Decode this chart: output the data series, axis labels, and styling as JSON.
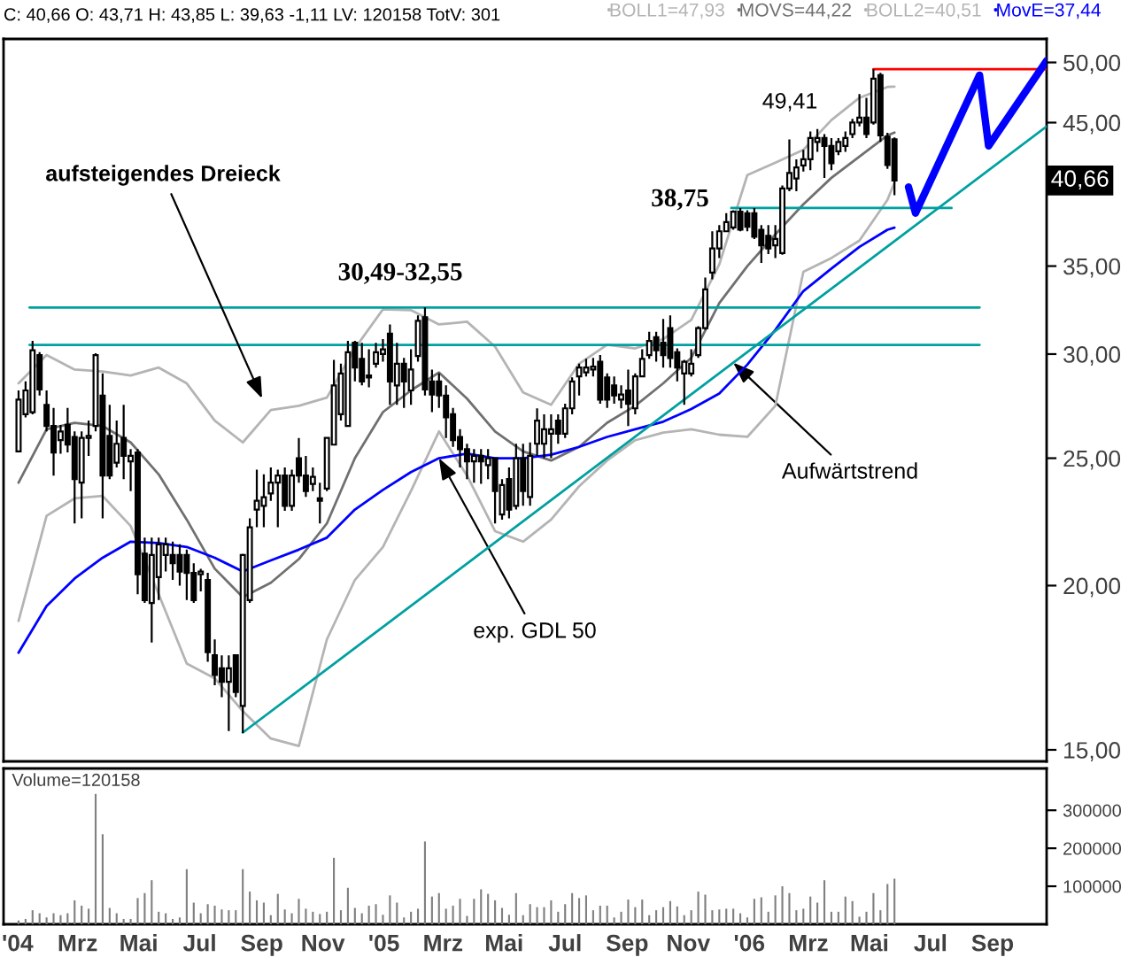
{
  "chart_data": [
    {
      "type": "candlestick",
      "title": "C: 40,66 O: 43,71 H: 43,85 L: 39,63 -1,11 LV: 120158 TotV: 301",
      "color": "#000000",
      "x": [
        "2004-01-02",
        "2004-01-09",
        "2004-01-16",
        "2004-01-23",
        "2004-01-30",
        "2004-02-06",
        "2004-02-13",
        "2004-02-20",
        "2004-02-27",
        "2004-03-05",
        "2004-03-12",
        "2004-03-19",
        "2004-03-26",
        "2004-04-02",
        "2004-04-09",
        "2004-04-16",
        "2004-04-23",
        "2004-04-30",
        "2004-05-07",
        "2004-05-14",
        "2004-05-21",
        "2004-05-28",
        "2004-06-04",
        "2004-06-11",
        "2004-06-18",
        "2004-06-25",
        "2004-07-02",
        "2004-07-09",
        "2004-07-16",
        "2004-07-23",
        "2004-07-30",
        "2004-08-06",
        "2004-08-13",
        "2004-08-20",
        "2004-08-27",
        "2004-09-03",
        "2004-09-10",
        "2004-09-17",
        "2004-09-24",
        "2004-10-01",
        "2004-10-08",
        "2004-10-15",
        "2004-10-22",
        "2004-10-29",
        "2004-11-05",
        "2004-11-12",
        "2004-11-19",
        "2004-11-26",
        "2004-12-03",
        "2004-12-10",
        "2004-12-17",
        "2004-12-24",
        "2004-12-31",
        "2005-01-07",
        "2005-01-14",
        "2005-01-21",
        "2005-01-28",
        "2005-02-04",
        "2005-02-11",
        "2005-02-18",
        "2005-02-25",
        "2005-03-04",
        "2005-03-11",
        "2005-03-18",
        "2005-03-25",
        "2005-04-01",
        "2005-04-08",
        "2005-04-15",
        "2005-04-22",
        "2005-04-29",
        "2005-05-06",
        "2005-05-13",
        "2005-05-20",
        "2005-05-27",
        "2005-06-03",
        "2005-06-10",
        "2005-06-17",
        "2005-06-24",
        "2005-07-01",
        "2005-07-08",
        "2005-07-15",
        "2005-07-22",
        "2005-07-29",
        "2005-08-05",
        "2005-08-12",
        "2005-08-19",
        "2005-08-26",
        "2005-09-02",
        "2005-09-09",
        "2005-09-16",
        "2005-09-23",
        "2005-09-30",
        "2005-10-07",
        "2005-10-14",
        "2005-10-21",
        "2005-10-28",
        "2005-11-04",
        "2005-11-11",
        "2005-11-18",
        "2005-11-25",
        "2005-12-02",
        "2005-12-09",
        "2005-12-16",
        "2005-12-23",
        "2005-12-30",
        "2006-01-06",
        "2006-01-13",
        "2006-01-20",
        "2006-01-27",
        "2006-02-03",
        "2006-02-10",
        "2006-02-17",
        "2006-02-24",
        "2006-03-03",
        "2006-03-10",
        "2006-03-17",
        "2006-03-24",
        "2006-03-31",
        "2006-04-07",
        "2006-04-14",
        "2006-04-21",
        "2006-04-28",
        "2006-05-05",
        "2006-05-12",
        "2006-05-19",
        "2006-05-26"
      ],
      "ohlc": [
        [
          25.3,
          28.15,
          25.25,
          27.7
        ],
        [
          27.0,
          28.6,
          26.85,
          28.15
        ],
        [
          27.1,
          30.7,
          27.0,
          30.2
        ],
        [
          29.95,
          30.1,
          27.9,
          28.2
        ],
        [
          27.45,
          28.15,
          26.2,
          26.45
        ],
        [
          26.45,
          27.3,
          24.25,
          25.25
        ],
        [
          25.8,
          26.5,
          25.2,
          26.2
        ],
        [
          26.5,
          27.3,
          25.25,
          25.6
        ],
        [
          25.95,
          26.2,
          22.3,
          24.1
        ],
        [
          23.95,
          26.2,
          22.5,
          25.9
        ],
        [
          25.9,
          26.7,
          25.1,
          26.0
        ],
        [
          26.45,
          30.05,
          26.2,
          29.95
        ],
        [
          27.9,
          29.0,
          22.5,
          24.25
        ],
        [
          26.0,
          27.45,
          24.1,
          24.25
        ],
        [
          24.8,
          26.7,
          24.6,
          25.64
        ],
        [
          25.9,
          27.45,
          24.1,
          25.1
        ],
        [
          24.86,
          25.4,
          23.6,
          25.1
        ],
        [
          25.25,
          25.4,
          19.7,
          20.4
        ],
        [
          21.15,
          21.75,
          19.4,
          19.5
        ],
        [
          19.4,
          21.75,
          18.1,
          21.1
        ],
        [
          20.3,
          21.75,
          19.5,
          21.5
        ],
        [
          21.1,
          21.75,
          20.5,
          21.5
        ],
        [
          21.1,
          21.6,
          20.2,
          20.8
        ],
        [
          21.1,
          21.5,
          20.0,
          20.5
        ],
        [
          21.1,
          21.3,
          19.5,
          20.45
        ],
        [
          20.45,
          20.8,
          19.4,
          19.5
        ],
        [
          20.4,
          20.6,
          19.8,
          20.5
        ],
        [
          20.2,
          20.45,
          17.5,
          17.8
        ],
        [
          17.7,
          18.2,
          16.8,
          17.1
        ],
        [
          17.3,
          17.7,
          16.45,
          16.9
        ],
        [
          16.9,
          17.7,
          15.5,
          17.3
        ],
        [
          17.7,
          17.7,
          16.45,
          16.6
        ],
        [
          16.2,
          21.15,
          15.45,
          21.1
        ],
        [
          19.5,
          22.5,
          19.4,
          22.15
        ],
        [
          22.85,
          24.5,
          22.15,
          23.2
        ],
        [
          23.0,
          24.3,
          22.15,
          23.35
        ],
        [
          23.5,
          24.6,
          23.2,
          23.95
        ],
        [
          23.95,
          24.5,
          22.15,
          24.25
        ],
        [
          24.25,
          24.6,
          22.8,
          23.0
        ],
        [
          23.0,
          24.5,
          22.8,
          24.25
        ],
        [
          25.0,
          25.9,
          23.95,
          24.25
        ],
        [
          24.25,
          25.1,
          23.36,
          23.6
        ],
        [
          23.9,
          24.6,
          23.6,
          24.2
        ],
        [
          23.3,
          23.95,
          22.3,
          23.2
        ],
        [
          23.7,
          25.9,
          23.6,
          25.9
        ],
        [
          25.6,
          29.7,
          25.6,
          28.4
        ],
        [
          27.0,
          29.5,
          26.7,
          29.0
        ],
        [
          26.45,
          30.7,
          26.45,
          30.1
        ],
        [
          30.6,
          30.7,
          28.6,
          29.3
        ],
        [
          29.75,
          30.6,
          28.4,
          28.6
        ],
        [
          28.8,
          30.25,
          28.3,
          28.9
        ],
        [
          29.5,
          30.6,
          29.3,
          30.1
        ],
        [
          30.0,
          30.8,
          29.6,
          30.25
        ],
        [
          31.1,
          31.6,
          27.45,
          28.6
        ],
        [
          28.4,
          30.6,
          27.45,
          29.5
        ],
        [
          29.5,
          29.8,
          27.3,
          28.6
        ],
        [
          28.15,
          30.25,
          27.45,
          29.2
        ],
        [
          29.9,
          32.1,
          29.6,
          31.8
        ],
        [
          32.0,
          32.55,
          27.9,
          28.2
        ],
        [
          28.6,
          29.2,
          27.1,
          27.95
        ],
        [
          28.6,
          29.0,
          27.3,
          27.9
        ],
        [
          27.9,
          28.4,
          25.9,
          26.85
        ],
        [
          27.0,
          27.3,
          25.5,
          25.8
        ],
        [
          25.95,
          26.3,
          24.6,
          25.4
        ],
        [
          25.4,
          25.64,
          24.1,
          24.86
        ],
        [
          24.86,
          25.4,
          23.95,
          25.1
        ],
        [
          25.1,
          25.4,
          23.9,
          24.86
        ],
        [
          24.7,
          25.4,
          24.1,
          25.0
        ],
        [
          25.0,
          25.0,
          22.3,
          23.6
        ],
        [
          22.65,
          24.1,
          22.45,
          23.85
        ],
        [
          24.1,
          24.6,
          22.5,
          22.85
        ],
        [
          23.0,
          25.64,
          22.85,
          25.0
        ],
        [
          25.0,
          25.64,
          23.0,
          23.6
        ],
        [
          23.36,
          25.7,
          23.0,
          25.1
        ],
        [
          25.64,
          27.28,
          25.1,
          26.7
        ],
        [
          25.64,
          27.0,
          25.0,
          26.3
        ],
        [
          26.1,
          27.0,
          25.0,
          26.3
        ],
        [
          26.7,
          27.0,
          25.64,
          26.1
        ],
        [
          26.1,
          27.5,
          25.9,
          27.28
        ],
        [
          27.28,
          28.8,
          27.0,
          28.6
        ],
        [
          28.85,
          29.5,
          27.9,
          29.3
        ],
        [
          29.05,
          29.75,
          28.85,
          29.3
        ],
        [
          29.2,
          29.8,
          28.85,
          29.35
        ],
        [
          29.6,
          29.95,
          27.5,
          27.7
        ],
        [
          28.8,
          29.0,
          27.3,
          27.7
        ],
        [
          28.4,
          28.85,
          27.5,
          27.9
        ],
        [
          27.7,
          28.4,
          27.28,
          27.95
        ],
        [
          28.15,
          29.2,
          26.45,
          27.5
        ],
        [
          27.28,
          29.0,
          27.0,
          28.85
        ],
        [
          28.85,
          30.25,
          28.8,
          29.75
        ],
        [
          29.95,
          31.2,
          29.75,
          30.7
        ],
        [
          30.9,
          31.2,
          29.6,
          30.2
        ],
        [
          30.6,
          31.9,
          29.3,
          29.95
        ],
        [
          31.4,
          32.1,
          29.3,
          29.8
        ],
        [
          30.1,
          30.3,
          28.6,
          29.3
        ],
        [
          29.0,
          29.7,
          27.45,
          29.6
        ],
        [
          29.0,
          30.25,
          28.85,
          29.5
        ],
        [
          29.95,
          31.5,
          29.8,
          31.4
        ],
        [
          31.4,
          34.3,
          31.3,
          33.6
        ],
        [
          34.6,
          37.2,
          34.2,
          36.1
        ],
        [
          36.1,
          37.6,
          35.5,
          37.2
        ],
        [
          37.2,
          38.4,
          37.2,
          37.8
        ],
        [
          37.45,
          38.6,
          37.3,
          38.5
        ],
        [
          38.5,
          38.75,
          37.2,
          37.3
        ],
        [
          38.4,
          38.6,
          37.2,
          37.5
        ],
        [
          38.4,
          38.75,
          36.7,
          36.85
        ],
        [
          37.3,
          37.6,
          35.2,
          36.3
        ],
        [
          36.9,
          37.6,
          35.75,
          36.1
        ],
        [
          36.3,
          37.6,
          35.5,
          36.7
        ],
        [
          35.8,
          40.3,
          35.7,
          40.1
        ],
        [
          40.1,
          43.7,
          39.9,
          41.2
        ],
        [
          40.8,
          42.2,
          39.9,
          41.6
        ],
        [
          41.75,
          42.9,
          41.3,
          42.2
        ],
        [
          42.2,
          44.3,
          41.4,
          43.8
        ],
        [
          43.5,
          44.5,
          42.75,
          43.8
        ],
        [
          43.8,
          44.1,
          40.85,
          43.2
        ],
        [
          43.2,
          43.8,
          41.4,
          41.9
        ],
        [
          42.8,
          43.8,
          42.5,
          43.5
        ],
        [
          43.2,
          44.3,
          42.75,
          43.8
        ],
        [
          44.1,
          45.3,
          43.8,
          45.0
        ],
        [
          45.0,
          47.3,
          44.7,
          45.4
        ],
        [
          45.4,
          47.0,
          43.8,
          44.1
        ],
        [
          45.0,
          49.41,
          44.85,
          48.6
        ],
        [
          48.9,
          49.1,
          43.5,
          44.0
        ],
        [
          43.9,
          44.2,
          41.5,
          41.77
        ],
        [
          43.71,
          43.85,
          39.63,
          40.66
        ]
      ],
      "series": [
        {
          "type": "line",
          "name": "BOLL1=47,93",
          "color": "#b4b4b4",
          "x": [
            "2004-01-02",
            "2004-01-30",
            "2004-02-27",
            "2004-03-26",
            "2004-04-23",
            "2004-05-21",
            "2004-06-18",
            "2004-07-16",
            "2004-08-13",
            "2004-09-10",
            "2004-10-08",
            "2004-11-05",
            "2004-12-03",
            "2004-12-31",
            "2005-01-28",
            "2005-02-25",
            "2005-03-25",
            "2005-04-22",
            "2005-05-20",
            "2005-06-17",
            "2005-07-15",
            "2005-08-12",
            "2005-09-09",
            "2005-10-07",
            "2005-11-04",
            "2005-12-02",
            "2005-12-30",
            "2006-01-27",
            "2006-02-24",
            "2006-03-24",
            "2006-04-21",
            "2006-05-19",
            "2006-05-26"
          ],
          "values": [
            28.5,
            29.95,
            29.2,
            29.1,
            28.9,
            29.3,
            28.5,
            26.7,
            25.7,
            27.2,
            27.4,
            27.8,
            30.3,
            32.45,
            32.4,
            31.6,
            31.75,
            30.4,
            28.05,
            27.45,
            29.5,
            30.5,
            30.3,
            30.8,
            31.85,
            35.1,
            41.05,
            41.95,
            42.9,
            45.2,
            47.0,
            47.9,
            47.93
          ]
        },
        {
          "type": "line",
          "name": "MOVS=44,22",
          "color": "#707070",
          "x": [
            "2004-01-02",
            "2004-01-30",
            "2004-02-27",
            "2004-03-26",
            "2004-04-23",
            "2004-05-21",
            "2004-06-18",
            "2004-07-16",
            "2004-08-13",
            "2004-09-10",
            "2004-10-08",
            "2004-11-05",
            "2004-12-03",
            "2004-12-31",
            "2005-01-28",
            "2005-02-25",
            "2005-03-25",
            "2005-04-22",
            "2005-05-20",
            "2005-06-17",
            "2005-07-15",
            "2005-08-12",
            "2005-09-09",
            "2005-10-07",
            "2005-11-04",
            "2005-12-02",
            "2005-12-30",
            "2006-01-27",
            "2006-02-24",
            "2006-03-24",
            "2006-04-21",
            "2006-05-19",
            "2006-05-26"
          ],
          "values": [
            23.95,
            26.3,
            26.6,
            26.45,
            25.7,
            24.3,
            22.45,
            20.6,
            19.6,
            20.1,
            20.95,
            22.3,
            25.0,
            27.1,
            28.15,
            29.05,
            27.75,
            26.2,
            25.3,
            24.9,
            25.5,
            26.6,
            27.4,
            28.5,
            29.8,
            32.8,
            35.0,
            37.0,
            39.0,
            40.85,
            42.4,
            44.0,
            44.22
          ]
        },
        {
          "type": "line",
          "name": "BOLL2=40,51",
          "color": "#b4b4b4",
          "x": [
            "2004-01-02",
            "2004-01-30",
            "2004-02-27",
            "2004-03-26",
            "2004-04-23",
            "2004-05-21",
            "2004-06-18",
            "2004-07-16",
            "2004-08-13",
            "2004-09-10",
            "2004-10-08",
            "2004-11-05",
            "2004-12-03",
            "2004-12-31",
            "2005-01-28",
            "2005-02-25",
            "2005-03-25",
            "2005-04-22",
            "2005-05-20",
            "2005-06-17",
            "2005-07-15",
            "2005-08-12",
            "2005-09-09",
            "2005-10-07",
            "2005-11-04",
            "2005-12-02",
            "2005-12-30",
            "2006-01-27",
            "2006-02-24",
            "2006-03-24",
            "2006-04-21",
            "2006-05-19",
            "2006-05-26"
          ],
          "values": [
            18.8,
            22.6,
            23.3,
            23.4,
            22.2,
            19.7,
            17.45,
            17.0,
            16.05,
            15.3,
            15.1,
            18.2,
            20.2,
            21.4,
            23.6,
            26.2,
            24.25,
            22.0,
            21.6,
            22.45,
            23.8,
            24.9,
            25.8,
            26.15,
            26.3,
            26.05,
            25.95,
            27.4,
            34.65,
            35.5,
            36.6,
            39.3,
            40.51
          ]
        },
        {
          "type": "line",
          "name": "MovE=37,44",
          "color": "#0000ff",
          "x": [
            "2004-01-02",
            "2004-01-30",
            "2004-02-27",
            "2004-03-26",
            "2004-04-23",
            "2004-05-21",
            "2004-06-18",
            "2004-07-16",
            "2004-08-13",
            "2004-09-10",
            "2004-10-08",
            "2004-11-05",
            "2004-12-03",
            "2004-12-31",
            "2005-01-28",
            "2005-02-25",
            "2005-03-25",
            "2005-04-22",
            "2005-05-20",
            "2005-06-17",
            "2005-07-15",
            "2005-08-12",
            "2005-09-09",
            "2005-10-07",
            "2005-11-04",
            "2005-12-02",
            "2005-12-30",
            "2006-01-27",
            "2006-02-24",
            "2006-03-24",
            "2006-04-21",
            "2006-05-19",
            "2006-05-26"
          ],
          "values": [
            17.78,
            19.3,
            20.25,
            21.0,
            21.6,
            21.55,
            21.4,
            21.0,
            20.5,
            20.9,
            21.3,
            21.75,
            22.85,
            23.65,
            24.4,
            25.0,
            25.2,
            25.0,
            25.0,
            25.15,
            25.5,
            25.95,
            26.3,
            26.65,
            27.25,
            28.0,
            29.45,
            31.3,
            33.5,
            34.85,
            36.2,
            37.3,
            37.44
          ]
        },
        {
          "type": "line",
          "color": "#00a0a0",
          "x": [
            "2004-01-13",
            "2006-08-19"
          ],
          "values": [
            32.55,
            32.55
          ]
        },
        {
          "type": "line",
          "color": "#00a0a0",
          "x": [
            "2004-01-13",
            "2006-08-19"
          ],
          "values": [
            30.49,
            30.49
          ]
        },
        {
          "type": "line",
          "color": "#00a0a0",
          "x": [
            "2004-08-13",
            "2006-10-25"
          ],
          "values": [
            15.46,
            44.7
          ]
        },
        {
          "type": "line",
          "color": "#00a0a0",
          "x": [
            "2005-12-14",
            "2006-07-22"
          ],
          "values": [
            38.75,
            38.75
          ]
        },
        {
          "type": "line",
          "color": "#ff0000",
          "x": [
            "2006-05-05",
            "2006-10-25"
          ],
          "values": [
            49.41,
            49.41
          ]
        },
        {
          "type": "line",
          "color": "#0000ff",
          "x": [
            "2006-06-09",
            "2006-06-16",
            "2006-08-19",
            "2006-08-28",
            "2006-10-25"
          ],
          "values": [
            40.2,
            38.4,
            48.9,
            43.2,
            50.15
          ]
        }
      ],
      "annotations": [
        {
          "text": "30,49-32,55",
          "x": "2005-01-28",
          "y": 32.55
        },
        "38,75",
        "49,41",
        "aufsteigendes Dreieck",
        {
          "text": "exp. GDL 50",
          "x": "2005-02-25",
          "y": 25.0
        },
        {
          "text": "Aufwärtstrend",
          "x": "2005-12-16",
          "y": 29.55
        },
        "40,66"
      ],
      "xlim": [
        "2003-12-18",
        "2006-10-25"
      ],
      "ylim": [
        14.7,
        52.1
      ],
      "log": true,
      "yticks": [
        {
          "value": 15,
          "label": "15,00"
        },
        {
          "value": 20,
          "label": "20,00"
        },
        {
          "value": 25,
          "label": "25,00"
        },
        {
          "value": 30,
          "label": "30,00"
        },
        {
          "value": 35,
          "label": "35,00"
        },
        {
          "value": 40,
          "label": null
        },
        {
          "value": 45,
          "label": "45,00"
        },
        {
          "value": 50,
          "label": "50,00"
        }
      ],
      "legend": "top",
      "tick_labels": "y"
    },
    {
      "type": "bar",
      "title": "Volume=120158",
      "color": "#808080",
      "x": [
        "2004-01-02",
        "2004-01-09",
        "2004-01-16",
        "2004-01-23",
        "2004-01-30",
        "2004-02-06",
        "2004-02-13",
        "2004-02-20",
        "2004-02-27",
        "2004-03-05",
        "2004-03-12",
        "2004-03-19",
        "2004-03-26",
        "2004-04-02",
        "2004-04-09",
        "2004-04-16",
        "2004-04-23",
        "2004-04-30",
        "2004-05-07",
        "2004-05-14",
        "2004-05-21",
        "2004-05-28",
        "2004-06-04",
        "2004-06-11",
        "2004-06-18",
        "2004-06-25",
        "2004-07-02",
        "2004-07-09",
        "2004-07-16",
        "2004-07-23",
        "2004-07-30",
        "2004-08-06",
        "2004-08-13",
        "2004-08-20",
        "2004-08-27",
        "2004-09-03",
        "2004-09-10",
        "2004-09-17",
        "2004-09-24",
        "2004-10-01",
        "2004-10-08",
        "2004-10-15",
        "2004-10-22",
        "2004-10-29",
        "2004-11-05",
        "2004-11-12",
        "2004-11-19",
        "2004-11-26",
        "2004-12-03",
        "2004-12-10",
        "2004-12-17",
        "2004-12-24",
        "2004-12-31",
        "2005-01-07",
        "2005-01-14",
        "2005-01-21",
        "2005-01-28",
        "2005-02-04",
        "2005-02-11",
        "2005-02-18",
        "2005-02-25",
        "2005-03-04",
        "2005-03-11",
        "2005-03-18",
        "2005-03-25",
        "2005-04-01",
        "2005-04-08",
        "2005-04-15",
        "2005-04-22",
        "2005-04-29",
        "2005-05-06",
        "2005-05-13",
        "2005-05-20",
        "2005-05-27",
        "2005-06-03",
        "2005-06-10",
        "2005-06-17",
        "2005-06-24",
        "2005-07-01",
        "2005-07-08",
        "2005-07-15",
        "2005-07-22",
        "2005-07-29",
        "2005-08-05",
        "2005-08-12",
        "2005-08-19",
        "2005-08-26",
        "2005-09-02",
        "2005-09-09",
        "2005-09-16",
        "2005-09-23",
        "2005-09-30",
        "2005-10-07",
        "2005-10-14",
        "2005-10-21",
        "2005-10-28",
        "2005-11-04",
        "2005-11-11",
        "2005-11-18",
        "2005-11-25",
        "2005-12-02",
        "2005-12-09",
        "2005-12-16",
        "2005-12-23",
        "2005-12-30",
        "2006-01-06",
        "2006-01-13",
        "2006-01-20",
        "2006-01-27",
        "2006-02-03",
        "2006-02-10",
        "2006-02-17",
        "2006-02-24",
        "2006-03-03",
        "2006-03-10",
        "2006-03-17",
        "2006-03-24",
        "2006-03-31",
        "2006-04-07",
        "2006-04-14",
        "2006-04-21",
        "2006-04-28",
        "2006-05-05",
        "2006-05-12",
        "2006-05-19",
        "2006-05-26"
      ],
      "values": [
        10000,
        14000,
        37000,
        29000,
        18000,
        29000,
        24000,
        29000,
        63000,
        49000,
        41000,
        343000,
        237000,
        43000,
        29000,
        14000,
        14000,
        69000,
        82000,
        116000,
        33000,
        29000,
        14000,
        18000,
        145000,
        57000,
        29000,
        53000,
        49000,
        39000,
        37000,
        37000,
        145000,
        86000,
        63000,
        57000,
        24000,
        80000,
        39000,
        29000,
        67000,
        41000,
        33000,
        27000,
        33000,
        175000,
        37000,
        96000,
        43000,
        29000,
        49000,
        53000,
        25000,
        76000,
        57000,
        18000,
        33000,
        41000,
        218000,
        73000,
        82000,
        41000,
        49000,
        67000,
        22000,
        67000,
        92000,
        80000,
        63000,
        43000,
        25000,
        82000,
        24000,
        53000,
        45000,
        45000,
        63000,
        33000,
        53000,
        82000,
        69000,
        76000,
        37000,
        49000,
        49000,
        18000,
        33000,
        65000,
        45000,
        65000,
        24000,
        37000,
        45000,
        61000,
        47000,
        24000,
        37000,
        86000,
        78000,
        37000,
        39000,
        41000,
        41000,
        29000,
        18000,
        67000,
        71000,
        33000,
        76000,
        100000,
        82000,
        37000,
        41000,
        73000,
        57000,
        116000,
        33000,
        33000,
        73000,
        61000,
        20000,
        33000,
        82000,
        37000,
        106000,
        120000
      ],
      "xlim": [
        "2003-12-18",
        "2006-10-25"
      ],
      "ylim": [
        0,
        410000
      ],
      "yticks": [
        100000,
        200000,
        300000
      ],
      "xticks": [
        {
          "value": "2004-01-01",
          "label": "'04"
        },
        {
          "value": "2004-03-01",
          "label": "Mrz"
        },
        {
          "value": "2004-05-01",
          "label": "Mai"
        },
        {
          "value": "2004-07-01",
          "label": "Jul"
        },
        {
          "value": "2004-09-01",
          "label": "Sep"
        },
        {
          "value": "2004-11-01",
          "label": "Nov"
        },
        {
          "value": "2005-01-01",
          "label": "'05"
        },
        {
          "value": "2005-03-01",
          "label": "Mrz"
        },
        {
          "value": "2005-05-01",
          "label": "Mai"
        },
        {
          "value": "2005-07-01",
          "label": "Jul"
        },
        {
          "value": "2005-09-01",
          "label": "Sep"
        },
        {
          "value": "2005-11-01",
          "label": "Nov"
        },
        {
          "value": "2006-01-01",
          "label": "'06"
        },
        {
          "value": "2006-03-01",
          "label": "Mrz"
        },
        {
          "value": "2006-05-01",
          "label": "Mai"
        },
        {
          "value": "2006-07-01",
          "label": "Jul"
        },
        {
          "value": "2006-09-01",
          "label": "Sep"
        }
      ]
    }
  ]
}
